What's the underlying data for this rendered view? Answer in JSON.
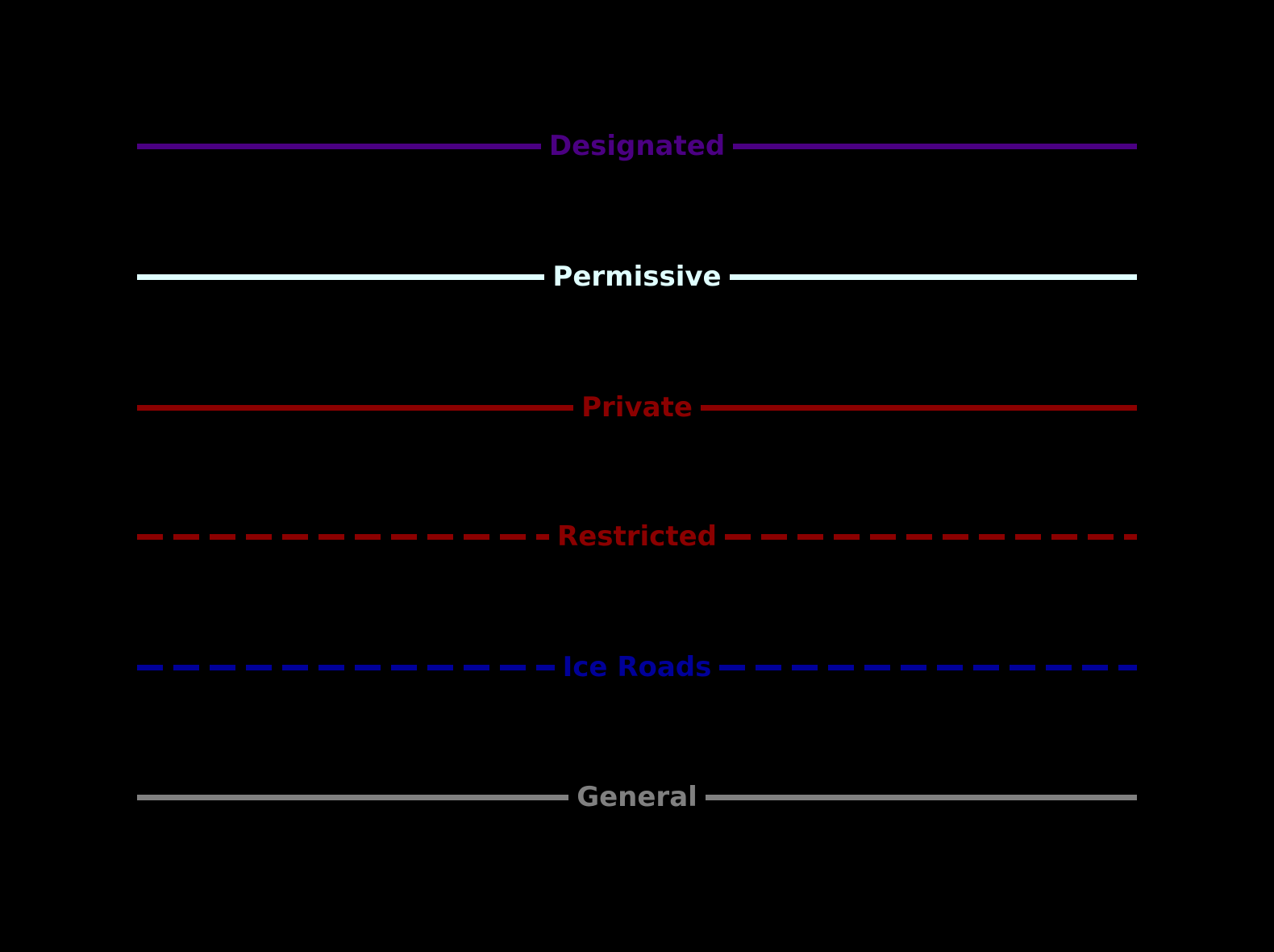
{
  "background_color": "#000000",
  "legend": {
    "items": [
      {
        "label": "Designated",
        "color": "#4B0082",
        "line_style": "solid"
      },
      {
        "label": "Permissive",
        "color": "#E0FFFF",
        "line_style": "solid"
      },
      {
        "label": "Private",
        "color": "#8B0000",
        "line_style": "solid"
      },
      {
        "label": "Restricted",
        "color": "#8B0000",
        "line_style": "dashed"
      },
      {
        "label": "Ice Roads",
        "color": "#000099",
        "line_style": "dashed"
      },
      {
        "label": "General",
        "color": "#808080",
        "line_style": "solid"
      }
    ]
  }
}
